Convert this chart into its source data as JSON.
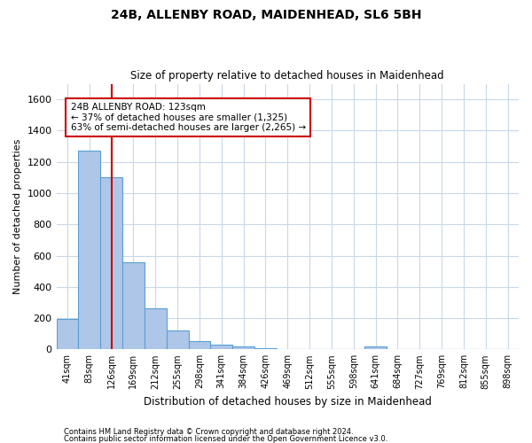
{
  "title1": "24B, ALLENBY ROAD, MAIDENHEAD, SL6 5BH",
  "title2": "Size of property relative to detached houses in Maidenhead",
  "xlabel": "Distribution of detached houses by size in Maidenhead",
  "ylabel": "Number of detached properties",
  "bins": [
    "41sqm",
    "83sqm",
    "126sqm",
    "169sqm",
    "212sqm",
    "255sqm",
    "298sqm",
    "341sqm",
    "384sqm",
    "426sqm",
    "469sqm",
    "512sqm",
    "555sqm",
    "598sqm",
    "641sqm",
    "684sqm",
    "727sqm",
    "769sqm",
    "812sqm",
    "855sqm",
    "898sqm"
  ],
  "values": [
    195,
    1270,
    1100,
    555,
    265,
    120,
    55,
    30,
    20,
    10,
    0,
    0,
    0,
    0,
    20,
    0,
    0,
    0,
    0,
    0,
    0
  ],
  "bar_color": "#aec6e8",
  "bar_edge_color": "#5a9fd4",
  "vline_x": 2,
  "vline_color": "#cc0000",
  "annotation_text": "24B ALLENBY ROAD: 123sqm\n← 37% of detached houses are smaller (1,325)\n63% of semi-detached houses are larger (2,265) →",
  "annotation_box_color": "#ffffff",
  "annotation_box_edge": "#cc0000",
  "ylim": [
    0,
    1700
  ],
  "yticks": [
    0,
    200,
    400,
    600,
    800,
    1000,
    1200,
    1400,
    1600
  ],
  "footer1": "Contains HM Land Registry data © Crown copyright and database right 2024.",
  "footer2": "Contains public sector information licensed under the Open Government Licence v3.0.",
  "background_color": "#ffffff",
  "grid_color": "#c8d8e8"
}
